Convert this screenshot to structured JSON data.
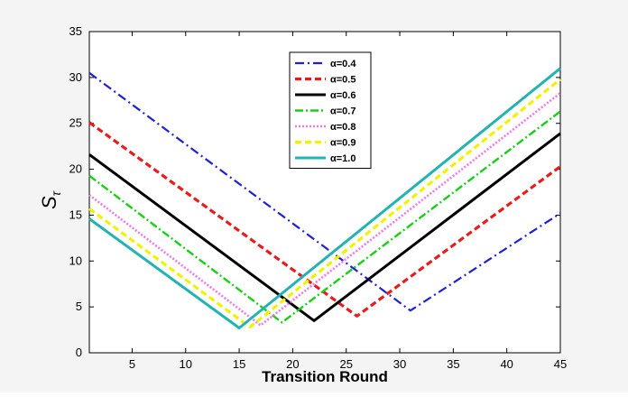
{
  "chart_data": {
    "type": "line",
    "title": "",
    "xlabel": "Transition Round",
    "ylabel": "S",
    "ylabel_sub": "τ",
    "xlim": [
      1,
      45
    ],
    "ylim": [
      0,
      35
    ],
    "xticks": [
      5,
      10,
      15,
      20,
      25,
      30,
      35,
      40,
      45
    ],
    "yticks": [
      0,
      5,
      10,
      15,
      20,
      25,
      30,
      35
    ],
    "grid": false,
    "legend_position": "top-center",
    "series": [
      {
        "name": "α=0.4",
        "color": "#1f1fd6",
        "dash": "10,4,2,4",
        "width": 2.2,
        "points": [
          [
            1,
            30.5
          ],
          [
            31,
            4.6
          ],
          [
            45,
            15.2
          ]
        ]
      },
      {
        "name": "α=0.5",
        "color": "#e81c1c",
        "dash": "7,4",
        "width": 3.2,
        "points": [
          [
            1,
            25.1
          ],
          [
            26,
            4.0
          ],
          [
            45,
            20.3
          ]
        ]
      },
      {
        "name": "α=0.6",
        "color": "#000000",
        "dash": "",
        "width": 3.0,
        "points": [
          [
            1,
            21.6
          ],
          [
            22,
            3.5
          ],
          [
            45,
            23.9
          ]
        ]
      },
      {
        "name": "α=0.7",
        "color": "#18d018",
        "dash": "9,3,2,3",
        "width": 2.4,
        "points": [
          [
            1,
            19.3
          ],
          [
            19,
            3.3
          ],
          [
            45,
            26.3
          ]
        ]
      },
      {
        "name": "α=0.8",
        "color": "#ee77ee",
        "dash": "2,2",
        "width": 2.6,
        "points": [
          [
            1,
            17.2
          ],
          [
            17,
            3.0
          ],
          [
            45,
            28.3
          ]
        ]
      },
      {
        "name": "α=0.9",
        "color": "#f2f200",
        "dash": "7,4",
        "width": 3.2,
        "points": [
          [
            1,
            15.7
          ],
          [
            16,
            2.8
          ],
          [
            45,
            29.8
          ]
        ]
      },
      {
        "name": "α=1.0",
        "color": "#23b3b3",
        "dash": "",
        "width": 3.0,
        "points": [
          [
            1,
            14.6
          ],
          [
            15,
            2.7
          ],
          [
            45,
            31.0
          ]
        ]
      }
    ]
  }
}
